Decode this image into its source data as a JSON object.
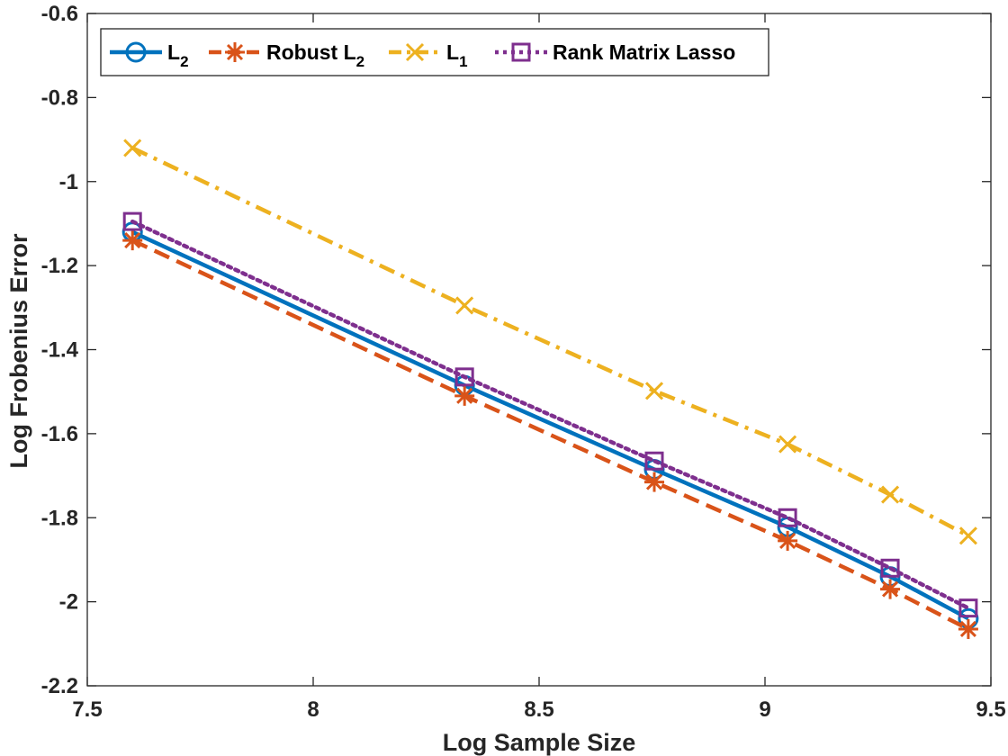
{
  "chart_data": {
    "type": "line",
    "xlabel": "Log Sample Size",
    "ylabel": "Log Frobenius Error",
    "xlim": [
      7.5,
      9.5
    ],
    "ylim": [
      -2.2,
      -0.6
    ],
    "xticks": [
      "7.5",
      "8",
      "8.5",
      "9",
      "9.5"
    ],
    "yticks": [
      "-2.2",
      "-2",
      "-1.8",
      "-1.6",
      "-1.4",
      "-1.2",
      "-1",
      "-0.8",
      "-0.6"
    ],
    "x": [
      7.6,
      8.335,
      8.755,
      9.05,
      9.277,
      9.45
    ],
    "grid": false,
    "legend_position": "top-left",
    "series": [
      {
        "name": "L",
        "name_sub": "2",
        "color": "#0072BD",
        "dash": "solid",
        "marker": "circle",
        "values": [
          -1.12,
          -1.485,
          -1.685,
          -1.822,
          -1.94,
          -2.04
        ]
      },
      {
        "name": "Robust L",
        "name_sub": "2",
        "color": "#D95319",
        "dash": "dashed",
        "marker": "asterisk",
        "values": [
          -1.14,
          -1.51,
          -1.715,
          -1.855,
          -1.97,
          -2.065
        ]
      },
      {
        "name": "L",
        "name_sub": "1",
        "color": "#EDB120",
        "dash": "dashdot",
        "marker": "x",
        "values": [
          -0.92,
          -1.295,
          -1.498,
          -1.625,
          -1.745,
          -1.843
        ]
      },
      {
        "name": "Rank Matrix Lasso",
        "name_sub": "",
        "color": "#7E2F8E",
        "dash": "dotted",
        "marker": "square",
        "values": [
          -1.095,
          -1.465,
          -1.665,
          -1.8,
          -1.92,
          -2.015
        ]
      }
    ]
  }
}
